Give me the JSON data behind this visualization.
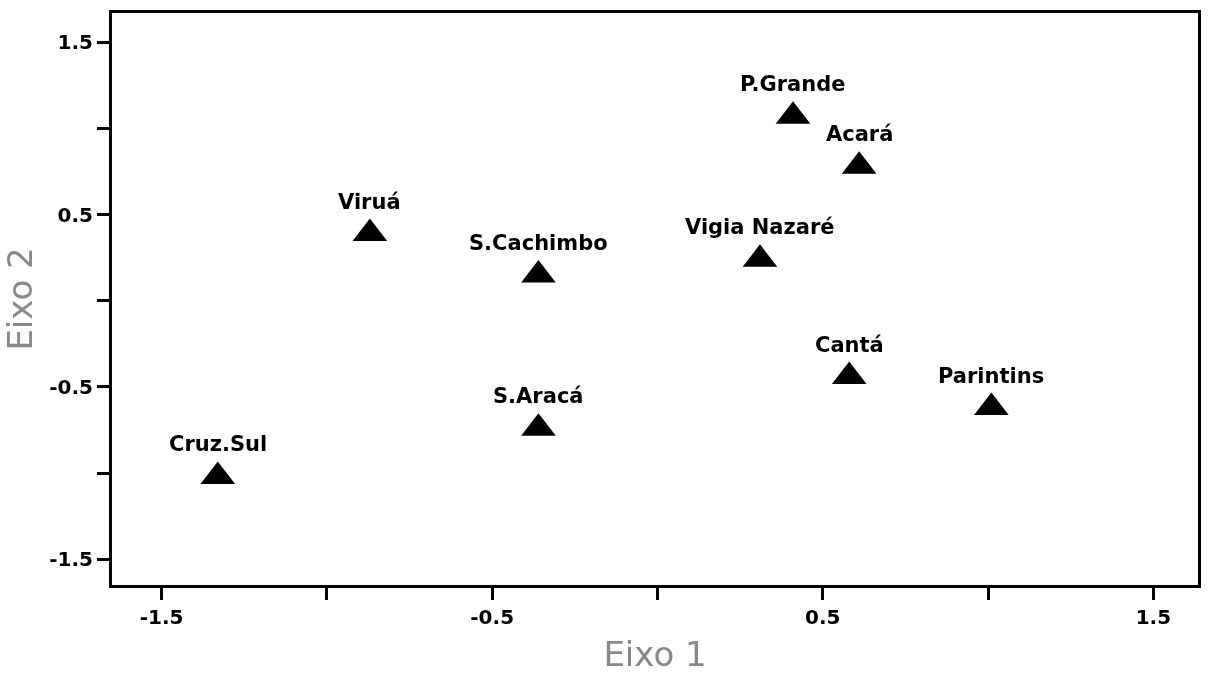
{
  "chart_data": {
    "type": "scatter",
    "xlabel": "Eixo 1",
    "ylabel": "Eixo 2",
    "marker": "triangle",
    "xlim": [
      -1.65,
      1.635
    ],
    "ylim": [
      -1.65,
      1.67
    ],
    "xticks": [
      -1.5,
      {
        "value": -1,
        "label": null
      },
      -0.5,
      {
        "value": 0,
        "label": null
      },
      0.5,
      {
        "value": 1,
        "label": null
      },
      1.5
    ],
    "yticks": [
      1.5,
      {
        "value": 1,
        "label": null
      },
      0.5,
      {
        "value": 0,
        "label": null
      },
      -0.5,
      {
        "value": -1,
        "label": null
      },
      -1.5
    ],
    "series": [
      {
        "color": "#000000",
        "x": [
          -1.33,
          -0.87,
          -0.36,
          -0.36,
          0.31,
          0.41,
          0.61,
          0.58,
          1.01
        ],
        "values": [
          -1.02,
          0.39,
          0.15,
          -0.74,
          0.24,
          1.07,
          0.78,
          -0.44,
          -0.62
        ]
      }
    ],
    "annotations": [
      {
        "text": "Cruz.Sul",
        "x": -1.33,
        "y": -1.02
      },
      {
        "text": "Viruá",
        "x": -0.87,
        "y": 0.39
      },
      {
        "text": "S.Cachimbo",
        "x": -0.36,
        "y": 0.15
      },
      {
        "text": "S.Aracá",
        "x": -0.36,
        "y": -0.74
      },
      {
        "text": "Vigia Nazaré",
        "x": 0.31,
        "y": 0.24
      },
      {
        "text": "P.Grande",
        "x": 0.41,
        "y": 1.07
      },
      {
        "text": "Acará",
        "x": 0.61,
        "y": 0.78
      },
      {
        "text": "Cantá",
        "x": 0.58,
        "y": -0.44
      },
      {
        "text": "Parintins",
        "x": 1.01,
        "y": -0.62
      }
    ]
  }
}
